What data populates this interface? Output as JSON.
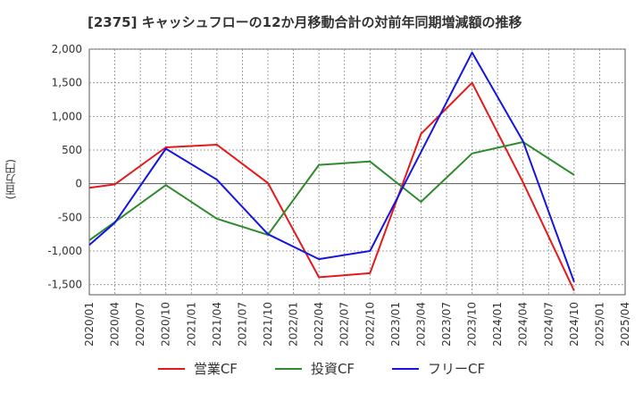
{
  "title": "[2375]  キャッシュフローの12か月移動合計の対前年同期増減額の推移",
  "chart_data": {
    "type": "line",
    "ylabel": "(百万円)",
    "xlabel": "",
    "x": [
      "2020/01",
      "2020/04",
      "2020/07",
      "2020/10",
      "2021/01",
      "2021/04",
      "2021/07",
      "2021/10",
      "2022/01",
      "2022/04",
      "2022/07",
      "2022/10",
      "2023/01",
      "2023/04",
      "2023/07",
      "2023/10",
      "2024/01",
      "2024/04",
      "2024/07",
      "2024/10",
      "2025/01",
      "2025/04"
    ],
    "ylim": [
      -1650,
      2000
    ],
    "yticks": [
      2000,
      1500,
      1000,
      500,
      0,
      -500,
      -1000,
      -1500
    ],
    "ytick_labels": [
      "2,000",
      "1,500",
      "1,000",
      "500",
      "0",
      "-500",
      "-1,000",
      "-1,500"
    ],
    "grid": true,
    "legend_position": "bottom",
    "series": [
      {
        "name": "営業CF",
        "color": "#e31a1c",
        "values": [
          -60,
          -10,
          null,
          540,
          null,
          580,
          null,
          10,
          null,
          -1390,
          null,
          -1330,
          null,
          740,
          null,
          1500,
          null,
          20,
          null,
          -1590,
          null,
          null
        ]
      },
      {
        "name": "投資CF",
        "color": "#2e8b2e",
        "values": [
          -840,
          -570,
          null,
          -20,
          null,
          -520,
          null,
          -760,
          null,
          280,
          null,
          330,
          null,
          -270,
          null,
          450,
          null,
          620,
          null,
          130,
          null,
          null
        ]
      },
      {
        "name": "フリーCF",
        "color": "#1515e0",
        "values": [
          -910,
          -580,
          null,
          520,
          null,
          60,
          null,
          -750,
          null,
          -1120,
          null,
          -1000,
          null,
          470,
          null,
          1950,
          null,
          630,
          null,
          -1460,
          null,
          null
        ]
      }
    ]
  }
}
